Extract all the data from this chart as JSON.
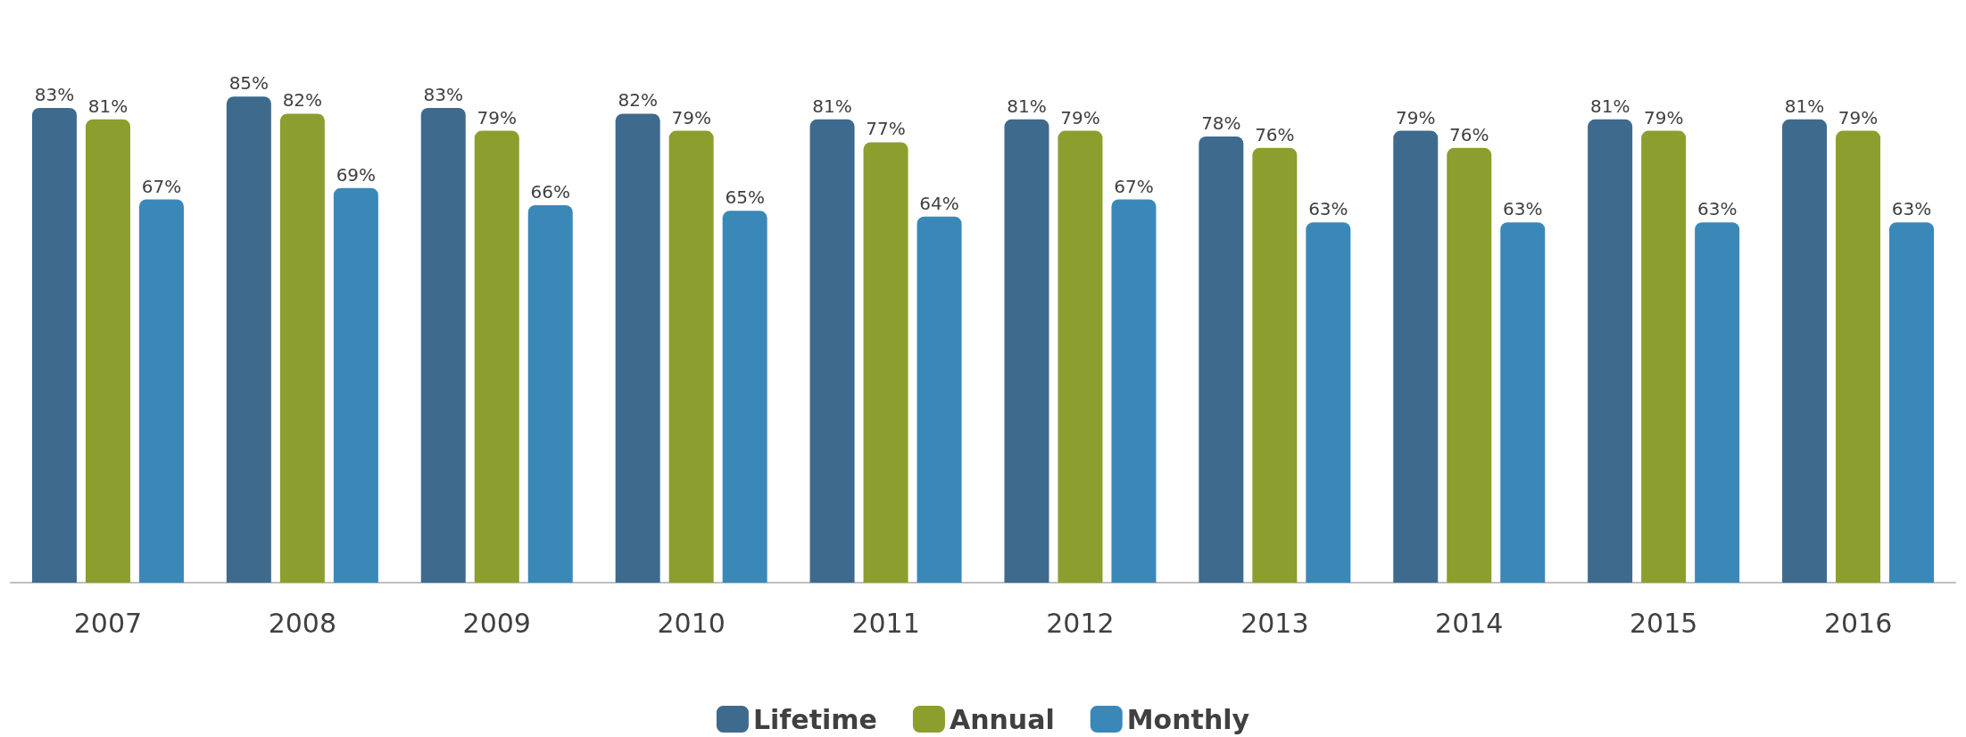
{
  "chart_data": {
    "type": "bar",
    "categories": [
      "2007",
      "2008",
      "2009",
      "2010",
      "2011",
      "2012",
      "2013",
      "2014",
      "2015",
      "2016"
    ],
    "series": [
      {
        "name": "Lifetime",
        "color": "#3e6a8e",
        "values": [
          83,
          85,
          83,
          82,
          81,
          81,
          78,
          79,
          81,
          81
        ],
        "value_labels": [
          "83%",
          "85%",
          "83%",
          "82%",
          "81%",
          "81%",
          "78%",
          "79%",
          "81%",
          "81%"
        ]
      },
      {
        "name": "Annual",
        "color": "#8c9e2e",
        "values": [
          81,
          82,
          79,
          79,
          77,
          79,
          76,
          76,
          79,
          79
        ],
        "value_labels": [
          "81%",
          "82%",
          "79%",
          "79%",
          "77%",
          "79%",
          "76%",
          "76%",
          "79%",
          "79%"
        ]
      },
      {
        "name": "Monthly",
        "color": "#3a88b8",
        "values": [
          67,
          69,
          66,
          65,
          64,
          67,
          63,
          63,
          63,
          63
        ],
        "value_labels": [
          "67%",
          "69%",
          "66%",
          "65%",
          "64%",
          "67%",
          "63%",
          "63%",
          "63%",
          "63%"
        ]
      }
    ],
    "legend": "bottom"
  }
}
